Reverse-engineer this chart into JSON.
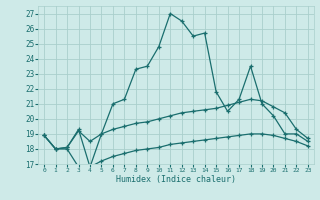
{
  "xlabel": "Humidex (Indice chaleur)",
  "xlim": [
    -0.5,
    23.5
  ],
  "ylim": [
    17,
    27.5
  ],
  "xticks": [
    0,
    1,
    2,
    3,
    4,
    5,
    6,
    7,
    8,
    9,
    10,
    11,
    12,
    13,
    14,
    15,
    16,
    17,
    18,
    19,
    20,
    21,
    22,
    23
  ],
  "yticks": [
    17,
    18,
    19,
    20,
    21,
    22,
    23,
    24,
    25,
    26,
    27
  ],
  "bg_color": "#ceeae8",
  "grid_color": "#aacfcc",
  "line_color": "#1a6e6e",
  "curve1": [
    18.9,
    18.0,
    18.1,
    19.3,
    16.8,
    19.0,
    21.0,
    21.3,
    23.3,
    23.5,
    24.8,
    27.0,
    26.5,
    25.5,
    25.7,
    21.8,
    20.5,
    21.3,
    23.5,
    21.0,
    20.2,
    19.0,
    19.0,
    18.5
  ],
  "curve2": [
    18.9,
    18.0,
    18.1,
    19.2,
    18.5,
    19.0,
    19.3,
    19.5,
    19.7,
    19.8,
    20.0,
    20.2,
    20.4,
    20.5,
    20.6,
    20.7,
    20.9,
    21.1,
    21.3,
    21.2,
    20.8,
    20.4,
    19.3,
    18.7
  ],
  "curve3": [
    18.9,
    18.0,
    18.0,
    16.8,
    16.8,
    17.2,
    17.5,
    17.7,
    17.9,
    18.0,
    18.1,
    18.3,
    18.4,
    18.5,
    18.6,
    18.7,
    18.8,
    18.9,
    19.0,
    19.0,
    18.9,
    18.7,
    18.5,
    18.2
  ],
  "figsize": [
    3.2,
    2.0
  ],
  "dpi": 100
}
